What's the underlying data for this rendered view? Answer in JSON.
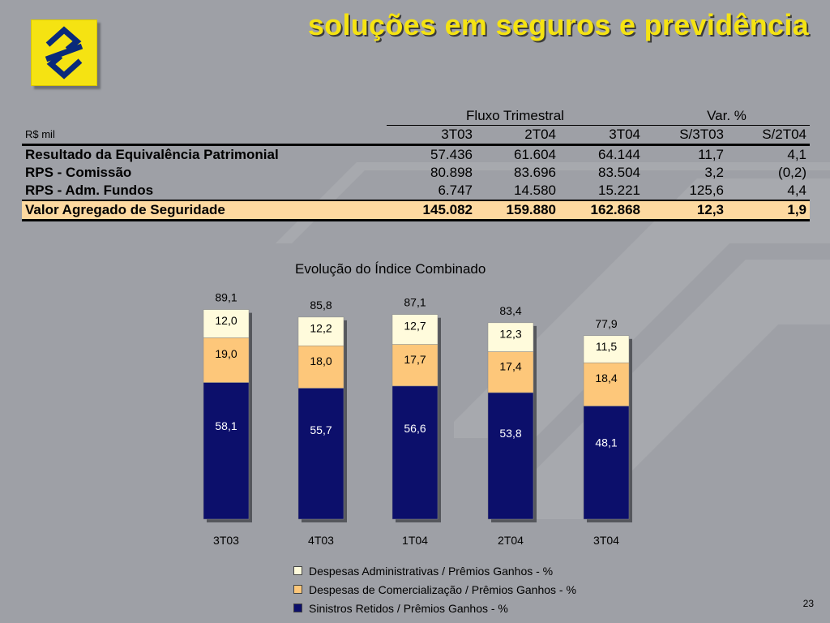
{
  "header": {
    "title": "soluções em seguros e previdência"
  },
  "logo": {
    "name": "banco-brasil-logo-icon"
  },
  "table": {
    "group_flow": "Fluxo Trimestral",
    "group_var": "Var. %",
    "unit": "R$ mil",
    "columns": [
      "3T03",
      "2T04",
      "3T04",
      "S/3T03",
      "S/2T04"
    ],
    "rows": [
      {
        "label": "Resultado da Equivalência Patrimonial",
        "values": [
          "57.436",
          "61.604",
          "64.144",
          "11,7",
          "4,1"
        ]
      },
      {
        "label": "RPS - Comissão",
        "values": [
          "80.898",
          "83.696",
          "83.504",
          "3,2",
          "(0,2)"
        ]
      },
      {
        "label": "RPS - Adm. Fundos",
        "values": [
          "6.747",
          "14.580",
          "15.221",
          "125,6",
          "4,4"
        ]
      }
    ],
    "total": {
      "label": "Valor Agregado de Seguridade",
      "values": [
        "145.082",
        "159.880",
        "162.868",
        "12,3",
        "1,9"
      ]
    }
  },
  "chart_data": {
    "type": "bar",
    "stacked": true,
    "title": "Evolução do Índice Combinado",
    "categories": [
      "3T03",
      "4T03",
      "1T04",
      "2T04",
      "3T04"
    ],
    "totals": [
      "89,1",
      "85,8",
      "87,1",
      "83,4",
      "77,9"
    ],
    "series": [
      {
        "name": "Sinistros Retidos / Prêmios Ganhos - %",
        "values": [
          58.1,
          55.7,
          56.6,
          53.8,
          48.1
        ],
        "labels": [
          "58,1",
          "55,7",
          "56,6",
          "53,8",
          "48,1"
        ],
        "color": "#0c0f6b",
        "label_color": "#ffffff"
      },
      {
        "name": "Despesas de Comercialização / Prêmios Ganhos - %",
        "values": [
          19.0,
          18.0,
          17.7,
          17.4,
          18.4
        ],
        "labels": [
          "19,0",
          "18,0",
          "17,7",
          "17,4",
          "18,4"
        ],
        "color": "#fdc77a",
        "label_color": "#000000"
      },
      {
        "name": "Despesas Administrativas / Prêmios Ganhos - %",
        "values": [
          12.0,
          12.2,
          12.7,
          12.3,
          11.5
        ],
        "labels": [
          "12,0",
          "12,2",
          "12,7",
          "12,3",
          "11,5"
        ],
        "color": "#fffbdc",
        "label_color": "#000000"
      }
    ],
    "legend_order": [
      2,
      1,
      0
    ],
    "grid": false,
    "legend": "bottom"
  },
  "footer": {
    "page": "23"
  }
}
